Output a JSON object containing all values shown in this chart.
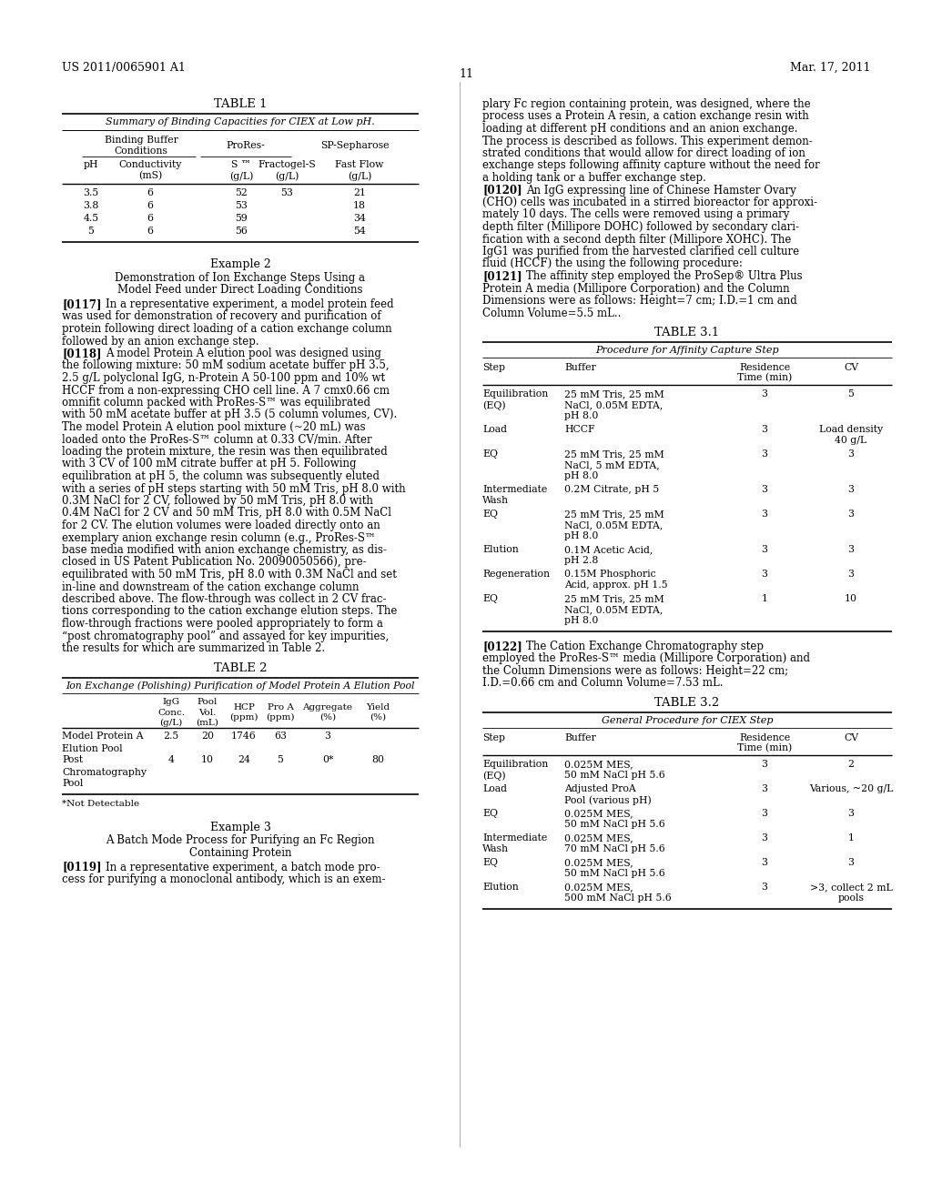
{
  "bg_color": "#ffffff",
  "header_left": "US 2011/0065901 A1",
  "header_right": "Mar. 17, 2011",
  "page_number": "11",
  "table1": {
    "title": "TABLE 1",
    "subtitle": "Summary of Binding Capacities for CIEX at Low pH.",
    "rows": [
      [
        "3.5",
        "6",
        "52",
        "53",
        "21"
      ],
      [
        "3.8",
        "6",
        "53",
        "",
        "18"
      ],
      [
        "4.5",
        "6",
        "59",
        "",
        "34"
      ],
      [
        "5",
        "6",
        "56",
        "",
        "54"
      ]
    ]
  },
  "table2": {
    "title": "TABLE 2",
    "subtitle": "Ion Exchange (Polishing) Purification of Model Protein A Elution Pool",
    "footnote": "*Not Detectable"
  },
  "table31": {
    "title": "TABLE 3.1",
    "subtitle": "Procedure for Affinity Capture Step",
    "rows": [
      [
        "Equilibration\n(EQ)",
        "25 mM Tris, 25 mM\nNaCl, 0.05M EDTA,\npH 8.0",
        "3",
        "5"
      ],
      [
        "Load",
        "HCCF",
        "3",
        "Load density\n40 g/L"
      ],
      [
        "EQ",
        "25 mM Tris, 25 mM\nNaCl, 5 mM EDTA,\npH 8.0",
        "3",
        "3"
      ],
      [
        "Intermediate\nWash",
        "0.2M Citrate, pH 5",
        "3",
        "3"
      ],
      [
        "EQ",
        "25 mM Tris, 25 mM\nNaCl, 0.05M EDTA,\npH 8.0",
        "3",
        "3"
      ],
      [
        "Elution",
        "0.1M Acetic Acid,\npH 2.8",
        "3",
        "3"
      ],
      [
        "Regeneration",
        "0.15M Phosphoric\nAcid, approx. pH 1.5",
        "3",
        "3"
      ],
      [
        "EQ",
        "25 mM Tris, 25 mM\nNaCl, 0.05M EDTA,\npH 8.0",
        "1",
        "10"
      ]
    ]
  },
  "table32": {
    "title": "TABLE 3.2",
    "subtitle": "General Procedure for CIEX Step",
    "rows": [
      [
        "Equilibration\n(EQ)",
        "0.025M MES,\n50 mM NaCl pH 5.6",
        "3",
        "2"
      ],
      [
        "Load",
        "Adjusted ProA\nPool (various pH)",
        "3",
        "Various, ~20 g/L"
      ],
      [
        "EQ",
        "0.025M MES,\n50 mM NaCl pH 5.6",
        "3",
        "3"
      ],
      [
        "Intermediate\nWash",
        "0.025M MES,\n70 mM NaCl pH 5.6",
        "3",
        "1"
      ],
      [
        "EQ",
        "0.025M MES,\n50 mM NaCl pH 5.6",
        "3",
        "3"
      ],
      [
        "Elution",
        "0.025M MES,\n500 mM NaCl pH 5.6",
        "3",
        ">3, collect 2 mL\npools"
      ]
    ]
  }
}
